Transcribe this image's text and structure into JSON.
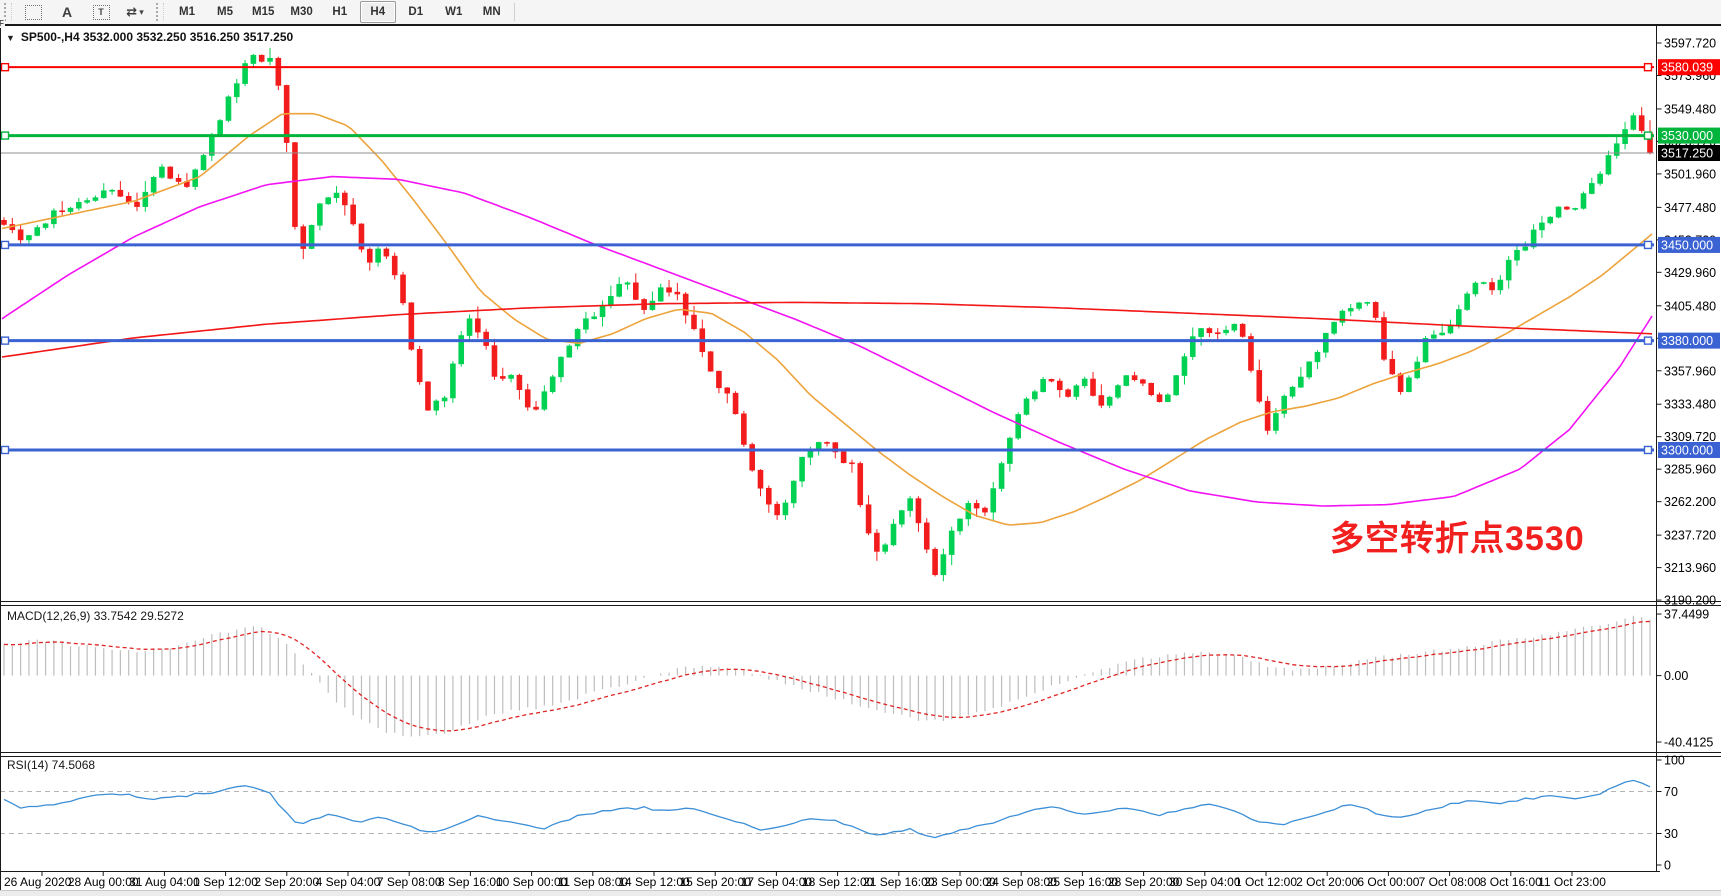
{
  "toolbar": {
    "tools": [
      {
        "name": "dashed-box-f-icon",
        "glyph": "F"
      },
      {
        "name": "text-a-icon",
        "glyph": "A"
      },
      {
        "name": "text-label-t-icon",
        "glyph": "T"
      },
      {
        "name": "arrows-tool-icon",
        "glyph": "⇄"
      }
    ],
    "dropdown_caret": "▾",
    "timeframes": [
      "M1",
      "M5",
      "M15",
      "M30",
      "H1",
      "H4",
      "D1",
      "W1",
      "MN"
    ],
    "active_timeframe": "H4"
  },
  "chart": {
    "collapse_arrow": "▼",
    "title": "SP500-,H4  3532.000 3532.250 3516.250 3517.250",
    "symbol": "SP500-",
    "period": "H4",
    "open": "3532.000",
    "high": "3532.250",
    "low": "3516.250",
    "close": "3517.250",
    "annotation": {
      "text": "多空转折点3530",
      "color": "#f21f1f"
    },
    "price_ticks": [
      "3597.720",
      "3573.960",
      "3549.480",
      "3525.720",
      "3501.960",
      "3477.480",
      "3453.720",
      "3429.960",
      "3405.480",
      "3381.720",
      "3357.960",
      "3333.480",
      "3309.720",
      "3285.960",
      "3262.200",
      "3237.720",
      "3213.960",
      "3190.200"
    ],
    "lines": [
      {
        "label": "3580.039",
        "price": 3580.039,
        "color": "#ff0000",
        "width": 2
      },
      {
        "label": "3530.000",
        "price": 3530.0,
        "color": "#00b43c",
        "width": 3
      },
      {
        "label": "3450.000",
        "price": 3450.0,
        "color": "#3a62d2",
        "width": 3
      },
      {
        "label": "3380.000",
        "price": 3380.0,
        "color": "#3a62d2",
        "width": 3
      },
      {
        "label": "3300.000",
        "price": 3300.0,
        "color": "#3a62d2",
        "width": 3
      }
    ],
    "current_price": {
      "label": "3517.250",
      "price": 3517.25,
      "line_color": "#909090",
      "label_bg": "#000000"
    }
  },
  "macd": {
    "label": "MACD(12,26,9) 33.7542 29.5272",
    "ticks": [
      {
        "v": 37.4499,
        "label": "37.4499"
      },
      {
        "v": 0,
        "label": "0.00"
      },
      {
        "v": -40.4125,
        "label": "-40.4125"
      }
    ]
  },
  "rsi": {
    "label": "RSI(14) 74.5068",
    "ticks": [
      {
        "v": 100,
        "label": "100"
      },
      {
        "v": 70,
        "label": "70"
      },
      {
        "v": 30,
        "label": "30"
      },
      {
        "v": 0,
        "label": "0"
      }
    ],
    "levels": [
      70,
      30
    ]
  },
  "date_ticks": [
    "26 Aug 2020",
    "28 Aug 00:00",
    "31 Aug 04:00",
    "1 Sep 12:00",
    "2 Sep 20:00",
    "4 Sep 04:00",
    "7 Sep 08:00",
    "8 Sep 16:00",
    "10 Sep 00:00",
    "11 Sep 08:00",
    "14 Sep 12:00",
    "15 Sep 20:00",
    "17 Sep 04:00",
    "18 Sep 12:00",
    "21 Sep 16:00",
    "23 Sep 00:00",
    "24 Sep 08:00",
    "25 Sep 16:00",
    "28 Sep 20:00",
    "30 Sep 04:00",
    "1 Oct 12:00",
    "2 Oct 20:00",
    "6 Oct 00:00",
    "7 Oct 08:00",
    "8 Oct 16:00",
    "11 Oct 23:00"
  ],
  "chart_data": {
    "type": "candlestick",
    "symbol": "SP500-",
    "timeframe": "H4",
    "grid": "off",
    "x_range": {
      "first_label": "26 Aug 2020",
      "last_label": "11 Oct 23:00"
    },
    "y_axis": {
      "min": 3190.2,
      "max": 3597.72
    },
    "current_bar": {
      "open": 3532.0,
      "high": 3532.25,
      "low": 3516.25,
      "close": 3517.25
    },
    "bid": 3517.25,
    "horizontal_levels": [
      3580.039,
      3530.0,
      3450.0,
      3380.0,
      3300.0
    ],
    "n_bars": 199,
    "candle_up_color": "#00d152",
    "candle_down_color": "#f31c1c",
    "price_path": [
      [
        0,
        3468
      ],
      [
        0.012,
        3452
      ],
      [
        0.03,
        3472
      ],
      [
        0.05,
        3480
      ],
      [
        0.065,
        3490
      ],
      [
        0.08,
        3478
      ],
      [
        0.095,
        3505
      ],
      [
        0.11,
        3490
      ],
      [
        0.125,
        3525
      ],
      [
        0.14,
        3565
      ],
      [
        0.148,
        3590
      ],
      [
        0.155,
        3588
      ],
      [
        0.163,
        3585
      ],
      [
        0.17,
        3545
      ],
      [
        0.177,
        3460
      ],
      [
        0.183,
        3448
      ],
      [
        0.19,
        3478
      ],
      [
        0.2,
        3492
      ],
      [
        0.21,
        3470
      ],
      [
        0.22,
        3438
      ],
      [
        0.23,
        3448
      ],
      [
        0.24,
        3425
      ],
      [
        0.25,
        3360
      ],
      [
        0.258,
        3325
      ],
      [
        0.268,
        3342
      ],
      [
        0.276,
        3378
      ],
      [
        0.284,
        3398
      ],
      [
        0.292,
        3380
      ],
      [
        0.3,
        3345
      ],
      [
        0.31,
        3358
      ],
      [
        0.32,
        3322
      ],
      [
        0.33,
        3345
      ],
      [
        0.34,
        3372
      ],
      [
        0.35,
        3390
      ],
      [
        0.36,
        3402
      ],
      [
        0.37,
        3418
      ],
      [
        0.38,
        3422
      ],
      [
        0.39,
        3400
      ],
      [
        0.4,
        3422
      ],
      [
        0.41,
        3410
      ],
      [
        0.42,
        3388
      ],
      [
        0.43,
        3352
      ],
      [
        0.44,
        3342
      ],
      [
        0.45,
        3300
      ],
      [
        0.46,
        3272
      ],
      [
        0.468,
        3248
      ],
      [
        0.476,
        3262
      ],
      [
        0.485,
        3292
      ],
      [
        0.495,
        3308
      ],
      [
        0.505,
        3300
      ],
      [
        0.515,
        3288
      ],
      [
        0.525,
        3240
      ],
      [
        0.532,
        3222
      ],
      [
        0.54,
        3248
      ],
      [
        0.55,
        3268
      ],
      [
        0.558,
        3240
      ],
      [
        0.566,
        3210
      ],
      [
        0.575,
        3238
      ],
      [
        0.585,
        3258
      ],
      [
        0.595,
        3252
      ],
      [
        0.605,
        3290
      ],
      [
        0.615,
        3322
      ],
      [
        0.625,
        3342
      ],
      [
        0.635,
        3352
      ],
      [
        0.645,
        3338
      ],
      [
        0.655,
        3355
      ],
      [
        0.665,
        3332
      ],
      [
        0.675,
        3342
      ],
      [
        0.685,
        3358
      ],
      [
        0.695,
        3340
      ],
      [
        0.705,
        3332
      ],
      [
        0.715,
        3362
      ],
      [
        0.725,
        3390
      ],
      [
        0.735,
        3382
      ],
      [
        0.745,
        3392
      ],
      [
        0.752,
        3384
      ],
      [
        0.76,
        3342
      ],
      [
        0.768,
        3312
      ],
      [
        0.776,
        3332
      ],
      [
        0.785,
        3352
      ],
      [
        0.795,
        3368
      ],
      [
        0.805,
        3388
      ],
      [
        0.815,
        3402
      ],
      [
        0.825,
        3412
      ],
      [
        0.833,
        3395
      ],
      [
        0.84,
        3362
      ],
      [
        0.848,
        3342
      ],
      [
        0.856,
        3362
      ],
      [
        0.865,
        3382
      ],
      [
        0.875,
        3388
      ],
      [
        0.885,
        3405
      ],
      [
        0.895,
        3422
      ],
      [
        0.905,
        3418
      ],
      [
        0.915,
        3438
      ],
      [
        0.925,
        3452
      ],
      [
        0.935,
        3468
      ],
      [
        0.945,
        3478
      ],
      [
        0.952,
        3472
      ],
      [
        0.96,
        3488
      ],
      [
        0.97,
        3505
      ],
      [
        0.98,
        3522
      ],
      [
        0.99,
        3542
      ],
      [
        1,
        3520
      ]
    ],
    "ma_orange": [
      [
        0,
        3462
      ],
      [
        0.04,
        3472
      ],
      [
        0.08,
        3482
      ],
      [
        0.12,
        3500
      ],
      [
        0.15,
        3530
      ],
      [
        0.17,
        3546
      ],
      [
        0.19,
        3546
      ],
      [
        0.21,
        3537
      ],
      [
        0.23,
        3512
      ],
      [
        0.25,
        3482
      ],
      [
        0.27,
        3450
      ],
      [
        0.29,
        3416
      ],
      [
        0.31,
        3396
      ],
      [
        0.33,
        3381
      ],
      [
        0.35,
        3378
      ],
      [
        0.37,
        3385
      ],
      [
        0.39,
        3396
      ],
      [
        0.41,
        3403
      ],
      [
        0.43,
        3400
      ],
      [
        0.45,
        3386
      ],
      [
        0.47,
        3366
      ],
      [
        0.49,
        3340
      ],
      [
        0.51,
        3320
      ],
      [
        0.53,
        3300
      ],
      [
        0.55,
        3282
      ],
      [
        0.57,
        3266
      ],
      [
        0.59,
        3252
      ],
      [
        0.61,
        3245
      ],
      [
        0.63,
        3247
      ],
      [
        0.65,
        3255
      ],
      [
        0.67,
        3266
      ],
      [
        0.69,
        3278
      ],
      [
        0.71,
        3293
      ],
      [
        0.73,
        3308
      ],
      [
        0.75,
        3320
      ],
      [
        0.77,
        3328
      ],
      [
        0.79,
        3332
      ],
      [
        0.81,
        3338
      ],
      [
        0.83,
        3348
      ],
      [
        0.85,
        3356
      ],
      [
        0.87,
        3363
      ],
      [
        0.89,
        3372
      ],
      [
        0.91,
        3384
      ],
      [
        0.93,
        3398
      ],
      [
        0.95,
        3412
      ],
      [
        0.97,
        3428
      ],
      [
        0.99,
        3448
      ],
      [
        1,
        3458
      ]
    ],
    "ma_magenta": [
      [
        0,
        3396
      ],
      [
        0.04,
        3428
      ],
      [
        0.08,
        3456
      ],
      [
        0.12,
        3478
      ],
      [
        0.16,
        3494
      ],
      [
        0.2,
        3500
      ],
      [
        0.24,
        3498
      ],
      [
        0.28,
        3488
      ],
      [
        0.32,
        3470
      ],
      [
        0.36,
        3450
      ],
      [
        0.4,
        3432
      ],
      [
        0.44,
        3414
      ],
      [
        0.48,
        3396
      ],
      [
        0.52,
        3376
      ],
      [
        0.56,
        3352
      ],
      [
        0.6,
        3328
      ],
      [
        0.64,
        3306
      ],
      [
        0.68,
        3286
      ],
      [
        0.72,
        3270
      ],
      [
        0.76,
        3262
      ],
      [
        0.8,
        3259
      ],
      [
        0.84,
        3260
      ],
      [
        0.88,
        3266
      ],
      [
        0.92,
        3286
      ],
      [
        0.95,
        3315
      ],
      [
        0.98,
        3360
      ],
      [
        1,
        3398
      ]
    ],
    "ma_red": [
      [
        0,
        3368
      ],
      [
        0.08,
        3382
      ],
      [
        0.16,
        3392
      ],
      [
        0.24,
        3399
      ],
      [
        0.32,
        3404
      ],
      [
        0.4,
        3407
      ],
      [
        0.48,
        3408
      ],
      [
        0.56,
        3407
      ],
      [
        0.64,
        3404
      ],
      [
        0.72,
        3400
      ],
      [
        0.8,
        3396
      ],
      [
        0.88,
        3391
      ],
      [
        1,
        3385
      ]
    ],
    "macd": {
      "max": 37.4499,
      "min": -40.4125,
      "last": 33.7542,
      "signal_last": 29.5272,
      "hist_path": [
        [
          0,
          18
        ],
        [
          0.02,
          22
        ],
        [
          0.04,
          19
        ],
        [
          0.06,
          17
        ],
        [
          0.08,
          15
        ],
        [
          0.1,
          17
        ],
        [
          0.12,
          23
        ],
        [
          0.14,
          28
        ],
        [
          0.155,
          30
        ],
        [
          0.17,
          20
        ],
        [
          0.185,
          4
        ],
        [
          0.2,
          -14
        ],
        [
          0.215,
          -26
        ],
        [
          0.23,
          -34
        ],
        [
          0.25,
          -38
        ],
        [
          0.27,
          -35
        ],
        [
          0.29,
          -26
        ],
        [
          0.31,
          -21
        ],
        [
          0.33,
          -19
        ],
        [
          0.35,
          -13
        ],
        [
          0.37,
          -7
        ],
        [
          0.39,
          -2
        ],
        [
          0.41,
          5
        ],
        [
          0.43,
          6
        ],
        [
          0.45,
          2
        ],
        [
          0.47,
          -3
        ],
        [
          0.49,
          -9
        ],
        [
          0.51,
          -15
        ],
        [
          0.53,
          -21
        ],
        [
          0.55,
          -26
        ],
        [
          0.57,
          -28
        ],
        [
          0.59,
          -23
        ],
        [
          0.61,
          -17
        ],
        [
          0.63,
          -9
        ],
        [
          0.65,
          -2
        ],
        [
          0.67,
          5
        ],
        [
          0.69,
          10
        ],
        [
          0.71,
          13
        ],
        [
          0.73,
          14
        ],
        [
          0.75,
          11
        ],
        [
          0.77,
          5
        ],
        [
          0.79,
          3
        ],
        [
          0.81,
          6
        ],
        [
          0.83,
          10
        ],
        [
          0.85,
          13
        ],
        [
          0.87,
          15
        ],
        [
          0.89,
          18
        ],
        [
          0.91,
          21
        ],
        [
          0.93,
          24
        ],
        [
          0.95,
          27
        ],
        [
          0.97,
          31
        ],
        [
          0.99,
          36
        ],
        [
          1,
          34
        ]
      ]
    },
    "rsi": {
      "last": 74.5068,
      "path": [
        [
          0,
          62
        ],
        [
          0.01,
          55
        ],
        [
          0.03,
          58
        ],
        [
          0.05,
          65
        ],
        [
          0.07,
          68
        ],
        [
          0.09,
          62
        ],
        [
          0.11,
          66
        ],
        [
          0.13,
          70
        ],
        [
          0.145,
          76
        ],
        [
          0.16,
          71
        ],
        [
          0.17,
          52
        ],
        [
          0.18,
          37
        ],
        [
          0.19,
          45
        ],
        [
          0.2,
          48
        ],
        [
          0.215,
          41
        ],
        [
          0.23,
          45
        ],
        [
          0.245,
          37
        ],
        [
          0.26,
          30
        ],
        [
          0.275,
          37
        ],
        [
          0.29,
          48
        ],
        [
          0.3,
          42
        ],
        [
          0.315,
          38
        ],
        [
          0.33,
          35
        ],
        [
          0.345,
          45
        ],
        [
          0.36,
          50
        ],
        [
          0.375,
          53
        ],
        [
          0.39,
          55
        ],
        [
          0.4,
          51
        ],
        [
          0.415,
          55
        ],
        [
          0.43,
          47
        ],
        [
          0.445,
          41
        ],
        [
          0.46,
          34
        ],
        [
          0.475,
          38
        ],
        [
          0.49,
          45
        ],
        [
          0.505,
          42
        ],
        [
          0.52,
          33
        ],
        [
          0.535,
          28
        ],
        [
          0.55,
          35
        ],
        [
          0.565,
          25
        ],
        [
          0.58,
          32
        ],
        [
          0.595,
          38
        ],
        [
          0.61,
          45
        ],
        [
          0.625,
          52
        ],
        [
          0.64,
          55
        ],
        [
          0.655,
          49
        ],
        [
          0.67,
          52
        ],
        [
          0.685,
          55
        ],
        [
          0.7,
          47
        ],
        [
          0.715,
          52
        ],
        [
          0.73,
          58
        ],
        [
          0.745,
          54
        ],
        [
          0.76,
          42
        ],
        [
          0.775,
          38
        ],
        [
          0.79,
          45
        ],
        [
          0.805,
          52
        ],
        [
          0.82,
          58
        ],
        [
          0.835,
          49
        ],
        [
          0.85,
          45
        ],
        [
          0.865,
          52
        ],
        [
          0.88,
          58
        ],
        [
          0.895,
          62
        ],
        [
          0.91,
          59
        ],
        [
          0.925,
          63
        ],
        [
          0.94,
          66
        ],
        [
          0.955,
          63
        ],
        [
          0.97,
          68
        ],
        [
          0.985,
          79
        ],
        [
          0.993,
          80
        ],
        [
          1,
          74.5
        ]
      ]
    }
  }
}
